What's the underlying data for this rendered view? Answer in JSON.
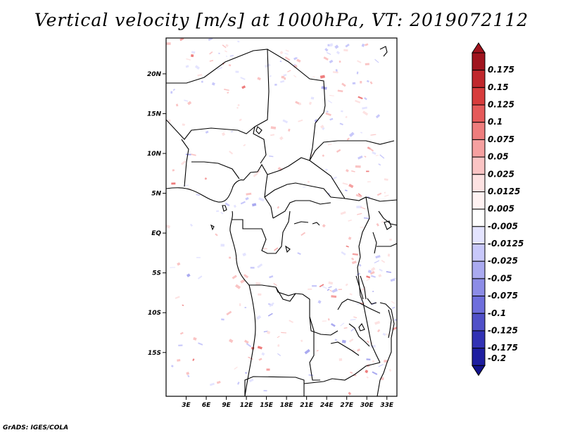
{
  "title": "Vertical velocity [m/s] at 1000hPa, VT: 2019072112",
  "credit": "GrADS: IGES/COLA",
  "map": {
    "lon_range": [
      0,
      34.5
    ],
    "lat_range": [
      -20.5,
      24.5
    ],
    "lat_ticks": [
      {
        "value": 20,
        "label": "20N"
      },
      {
        "value": 15,
        "label": "15N"
      },
      {
        "value": 10,
        "label": "10N"
      },
      {
        "value": 5,
        "label": "5N"
      },
      {
        "value": 0,
        "label": "EQ"
      },
      {
        "value": -5,
        "label": "5S"
      },
      {
        "value": -10,
        "label": "10S"
      },
      {
        "value": -15,
        "label": "15S"
      }
    ],
    "lon_ticks": [
      {
        "value": 3,
        "label": "3E"
      },
      {
        "value": 6,
        "label": "6E"
      },
      {
        "value": 9,
        "label": "9E"
      },
      {
        "value": 12,
        "label": "12E"
      },
      {
        "value": 15,
        "label": "15E"
      },
      {
        "value": 18,
        "label": "18E"
      },
      {
        "value": 21,
        "label": "21E"
      },
      {
        "value": 24,
        "label": "24E"
      },
      {
        "value": 27,
        "label": "27E"
      },
      {
        "value": 30,
        "label": "30E"
      },
      {
        "value": 33,
        "label": "33E"
      }
    ]
  },
  "colorbar": {
    "labels": [
      "0.175",
      "0.15",
      "0.125",
      "0.1",
      "0.075",
      "0.05",
      "0.025",
      "0.0125",
      "0.005",
      "-0.005",
      "-0.0125",
      "-0.025",
      "-0.05",
      "-0.075",
      "-0.1",
      "-0.125",
      "-0.175",
      "-0.2"
    ],
    "colors": [
      "#a0141e",
      "#c0282d",
      "#d73c3c",
      "#e55a5a",
      "#ee7d7d",
      "#f5a0a0",
      "#fac4c4",
      "#fde2e2",
      "#fff2f2",
      "#ffffff",
      "#e4e4ff",
      "#c8c8fa",
      "#aaaaf0",
      "#8c8ce6",
      "#6e6edc",
      "#5050c8",
      "#3232b4",
      "#1e1ea0",
      "#12128c"
    ]
  }
}
